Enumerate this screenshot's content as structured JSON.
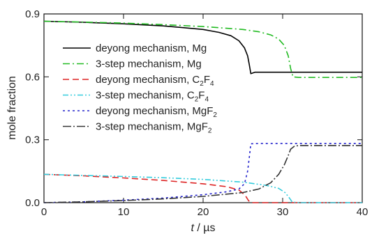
{
  "chart_data": {
    "type": "line",
    "title": "",
    "xlabel_italic": "t",
    "xlabel_rest": " / µs",
    "ylabel": "mole fraction",
    "xlim": [
      0,
      40
    ],
    "ylim": [
      0,
      0.9
    ],
    "xticks": [
      0,
      10,
      20,
      30,
      40
    ],
    "yticks": [
      0.0,
      0.3,
      0.6,
      0.9
    ],
    "ytick_labels": [
      "0.0",
      "0.3",
      "0.6",
      "0.9"
    ],
    "grid": false,
    "legend_position": "upper-left",
    "series": [
      {
        "name_main": "deyong mechanism, Mg",
        "name_sub": "",
        "name_tail": "",
        "color": "#000000",
        "dash": "solid",
        "x": [
          0,
          5,
          10,
          15,
          20,
          22,
          23.5,
          24.5,
          25.2,
          25.6,
          25.8,
          26,
          26.5,
          30,
          35,
          40
        ],
        "y": [
          0.865,
          0.86,
          0.853,
          0.843,
          0.826,
          0.812,
          0.796,
          0.772,
          0.738,
          0.7,
          0.66,
          0.615,
          0.622,
          0.622,
          0.622,
          0.622
        ]
      },
      {
        "name_main": "3-step mechanism, Mg",
        "name_sub": "",
        "name_tail": "",
        "color": "#22bb22",
        "dash": "dashdot",
        "x": [
          0,
          5,
          10,
          15,
          20,
          25,
          27,
          28.5,
          29.5,
          30.2,
          30.7,
          31,
          31.3,
          32,
          35,
          40
        ],
        "y": [
          0.865,
          0.861,
          0.856,
          0.849,
          0.84,
          0.826,
          0.815,
          0.8,
          0.78,
          0.75,
          0.7,
          0.64,
          0.6,
          0.597,
          0.597,
          0.597
        ]
      },
      {
        "name_main": "deyong mechanism, C",
        "name_sub": "2",
        "name_tail": "F",
        "name_sub2": "4",
        "color": "#dd2222",
        "dash": "dashed",
        "x": [
          0,
          5,
          10,
          15,
          20,
          23,
          24.5,
          25.3,
          25.7,
          26,
          28,
          40
        ],
        "y": [
          0.135,
          0.128,
          0.118,
          0.106,
          0.09,
          0.076,
          0.06,
          0.035,
          0.01,
          0.0,
          0.0,
          0.0
        ]
      },
      {
        "name_main": "3-step mechanism, C",
        "name_sub": "2",
        "name_tail": "F",
        "name_sub2": "4",
        "color": "#33ccdd",
        "dash": "dashdotdot",
        "x": [
          0,
          5,
          10,
          15,
          20,
          25,
          28,
          29.5,
          30.3,
          30.8,
          31.2,
          32,
          40
        ],
        "y": [
          0.135,
          0.13,
          0.125,
          0.119,
          0.111,
          0.098,
          0.082,
          0.068,
          0.048,
          0.025,
          0.003,
          0.0,
          0.0
        ]
      },
      {
        "name_main": "deyong mechanism, MgF",
        "name_sub": "2",
        "name_tail": "",
        "name_sub2": "",
        "color": "#2222cc",
        "dash": "dotted",
        "x": [
          0,
          5,
          10,
          15,
          20,
          23,
          24.5,
          25.2,
          25.6,
          25.85,
          26,
          27,
          30,
          35,
          40
        ],
        "y": [
          0.0,
          0.004,
          0.012,
          0.022,
          0.038,
          0.052,
          0.065,
          0.09,
          0.15,
          0.23,
          0.281,
          0.282,
          0.282,
          0.282,
          0.282
        ]
      },
      {
        "name_main": "3-step mechanism, MgF",
        "name_sub": "2",
        "name_tail": "",
        "name_sub2": "",
        "color": "#333333",
        "dash": "longdashdot",
        "x": [
          0,
          5,
          10,
          15,
          20,
          25,
          27,
          28.5,
          29.5,
          30.2,
          30.7,
          31,
          31.5,
          32,
          35,
          40
        ],
        "y": [
          0.0,
          0.004,
          0.01,
          0.018,
          0.03,
          0.048,
          0.065,
          0.095,
          0.135,
          0.18,
          0.225,
          0.255,
          0.27,
          0.272,
          0.272,
          0.272
        ]
      }
    ]
  }
}
